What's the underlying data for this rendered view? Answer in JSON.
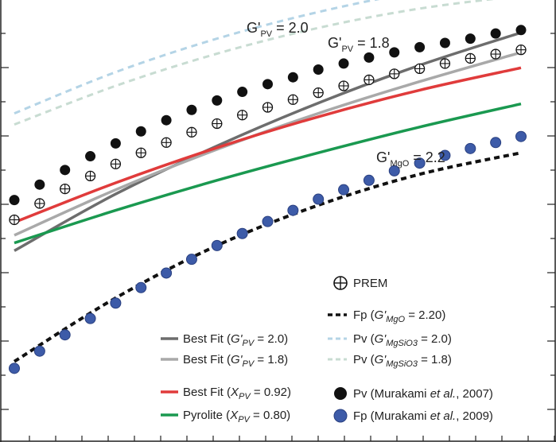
{
  "chart_data": {
    "type": "line",
    "title": "",
    "xlabel": "",
    "ylabel": "",
    "xlim": [
      0,
      100
    ],
    "ylim": [
      0,
      100
    ],
    "grid": false,
    "legend_position": "bottom-right",
    "colors": {
      "gpv20": "#6d6d6d",
      "gpv18": "#a9a9a9",
      "bestfit": "#e03b3b",
      "pyrolite": "#1a9950",
      "fp_dash": "#111111",
      "pv_light_dash_20": "#b4d4e6",
      "pv_light_dash_18": "#c8dcd2",
      "murakami_pv": "#111111",
      "murakami_fp": "#3d5ba8"
    },
    "annotations": [
      {
        "id": "gpv20",
        "main": "G'",
        "sub": "PV",
        "rest": " = 2.0"
      },
      {
        "id": "gpv18",
        "main": "G'",
        "sub": "PV",
        "rest": " = 1.8"
      },
      {
        "id": "gmgo",
        "main": "G'",
        "sub": "MgO",
        "rest": " = 2.2"
      }
    ],
    "legend": {
      "prem": "PREM",
      "fp_line": {
        "a": "Fp (",
        "g": "G'",
        "sub": "MgO",
        "rest": " = 2.20)"
      },
      "best20": {
        "a": "Best Fit (",
        "g": "G'",
        "sub": "PV",
        "rest": " = 2.0)"
      },
      "pv20": {
        "a": "Pv (",
        "g": "G'",
        "sub": "MgSiO3",
        "rest": " = 2.0)"
      },
      "best18": {
        "a": "Best Fit (",
        "g": "G'",
        "sub": "PV",
        "rest": " = 1.8)"
      },
      "pv18": {
        "a": "Pv (",
        "g": "G'",
        "sub": "MgSiO3",
        "rest": " = 1.8)"
      },
      "bestxpv": {
        "a": "Best Fit (",
        "g": "X",
        "sub": "PV",
        "rest": " = 0.92)"
      },
      "pv_mura": {
        "a": "Pv (Murakami ",
        "g": "et al.",
        "rest": ", 2007)"
      },
      "pyro": {
        "a": "Pyrolite (",
        "g": "X",
        "sub": "PV",
        "rest": " = 0.80)"
      },
      "fp_mura": {
        "a": "Fp (Murakami ",
        "g": "et al.",
        "rest": ", 2009)"
      }
    },
    "series": [
      {
        "id": "pv_light_20",
        "x": [
          0,
          20,
          40,
          60,
          80,
          100
        ],
        "y": [
          73.6,
          83.2,
          91.0,
          97.2,
          102.0,
          105.3
        ]
      },
      {
        "id": "pv_light_18",
        "x": [
          0,
          20,
          40,
          60,
          80,
          100
        ],
        "y": [
          71.0,
          80.0,
          87.5,
          93.5,
          98.0,
          101.0
        ]
      },
      {
        "id": "gpv20",
        "x": [
          0,
          20,
          40,
          60,
          80,
          100
        ],
        "y": [
          41.6,
          54.8,
          66.0,
          76.0,
          84.8,
          92.4
        ]
      },
      {
        "id": "gpv18",
        "x": [
          0,
          20,
          40,
          60,
          80,
          100
        ],
        "y": [
          45.2,
          55.8,
          65.2,
          73.6,
          81.0,
          87.8
        ]
      },
      {
        "id": "bestfit",
        "x": [
          0,
          20,
          40,
          60,
          80,
          100
        ],
        "y": [
          48.2,
          57.4,
          65.6,
          72.8,
          79.0,
          84.2
        ]
      },
      {
        "id": "pyrolite",
        "x": [
          0,
          20,
          40,
          60,
          80,
          100
        ],
        "y": [
          43.4,
          51.0,
          58.0,
          64.4,
          70.4,
          75.8
        ]
      },
      {
        "id": "fp_line",
        "x": [
          0,
          20,
          40,
          60,
          80,
          100
        ],
        "y": [
          15.8,
          30.6,
          42.8,
          52.2,
          59.4,
          64.4
        ]
      },
      {
        "id": "murakami_pv",
        "x": [
          0,
          5,
          10,
          15,
          20,
          25,
          30,
          35,
          40,
          45,
          50,
          55,
          60,
          65,
          70,
          75,
          80,
          85,
          90,
          95,
          100
        ],
        "y": [
          53.4,
          57.0,
          60.4,
          63.6,
          66.6,
          69.4,
          72.0,
          74.4,
          76.6,
          78.6,
          80.4,
          82.0,
          83.8,
          85.2,
          86.6,
          87.8,
          89.0,
          90.0,
          91.0,
          92.2,
          93.0
        ]
      },
      {
        "id": "prem",
        "x": [
          0,
          5,
          10,
          15,
          20,
          25,
          30,
          35,
          40,
          45,
          50,
          55,
          60,
          65,
          70,
          75,
          80,
          85,
          90,
          95,
          100
        ],
        "y": [
          48.8,
          52.6,
          56.0,
          59.0,
          61.8,
          64.4,
          66.8,
          69.2,
          71.2,
          73.2,
          75.0,
          76.8,
          78.4,
          80.0,
          81.4,
          82.8,
          84.0,
          85.2,
          86.4,
          87.4,
          88.4
        ]
      },
      {
        "id": "murakami_fp",
        "x": [
          0,
          5,
          10,
          15,
          20,
          25,
          30,
          35,
          40,
          45,
          50,
          55,
          60,
          65,
          70,
          75,
          80,
          85,
          90,
          95,
          100
        ],
        "y": [
          14.2,
          18.2,
          22.0,
          25.8,
          29.4,
          33.0,
          36.4,
          39.6,
          42.8,
          45.6,
          48.4,
          51.0,
          53.6,
          55.8,
          58.0,
          60.2,
          62.0,
          63.8,
          65.4,
          66.8,
          68.2
        ]
      }
    ]
  }
}
